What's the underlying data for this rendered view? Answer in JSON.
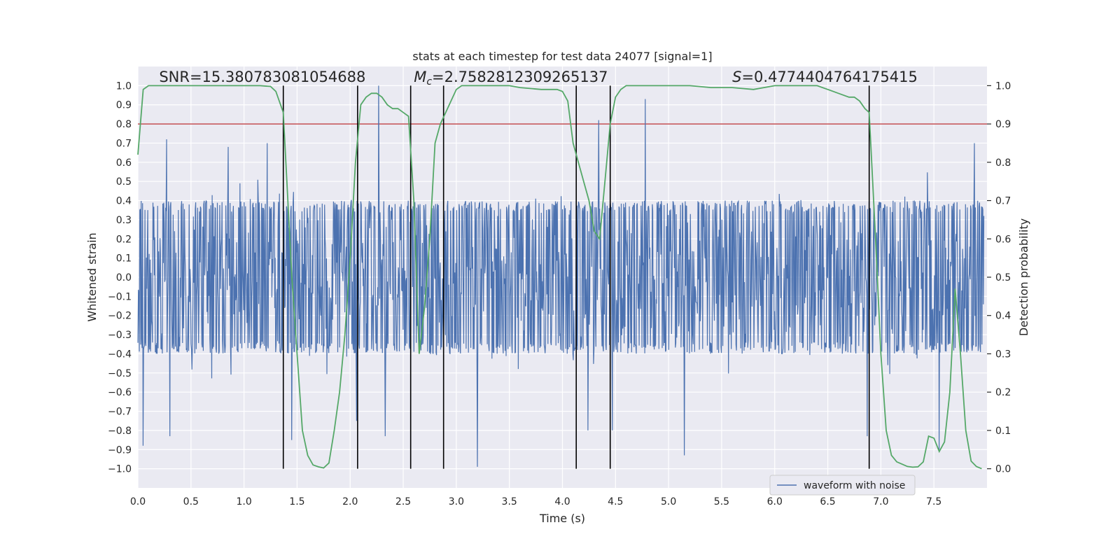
{
  "chart_data": {
    "type": "line",
    "title": "stats at each timestep for test data 24077 [signal=1]",
    "xlabel": "Time (s)",
    "ylabel": "Whitened strain",
    "ylabel_right": "Detection probability",
    "xlim": [
      0.0,
      8.0
    ],
    "ylim": [
      -1.1,
      1.1
    ],
    "ylim_right": [
      -0.05,
      1.05
    ],
    "x_ticks": [
      "0.0",
      "0.5",
      "1.0",
      "1.5",
      "2.0",
      "2.5",
      "3.0",
      "3.5",
      "4.0",
      "4.5",
      "5.0",
      "5.5",
      "6.0",
      "6.5",
      "7.0",
      "7.5"
    ],
    "x_tick_values": [
      0.0,
      0.5,
      1.0,
      1.5,
      2.0,
      2.5,
      3.0,
      3.5,
      4.0,
      4.5,
      5.0,
      5.5,
      6.0,
      6.5,
      7.0,
      7.5
    ],
    "y_ticks": [
      "1.0",
      "0.9",
      "0.8",
      "0.7",
      "0.6",
      "0.5",
      "0.4",
      "0.3",
      "0.2",
      "0.1",
      "0.0",
      "−0.1",
      "−0.2",
      "−0.3",
      "−0.4",
      "−0.5",
      "−0.6",
      "−0.7",
      "−0.8",
      "−0.9",
      "−1.0"
    ],
    "y_tick_values": [
      1.0,
      0.9,
      0.8,
      0.7,
      0.6,
      0.5,
      0.4,
      0.3,
      0.2,
      0.1,
      0.0,
      -0.1,
      -0.2,
      -0.3,
      -0.4,
      -0.5,
      -0.6,
      -0.7,
      -0.8,
      -0.9,
      -1.0
    ],
    "y2_ticks": [
      "1.0",
      "0.9",
      "0.8",
      "0.7",
      "0.6",
      "0.5",
      "0.4",
      "0.3",
      "0.2",
      "0.1",
      "0.0"
    ],
    "y2_tick_values": [
      1.0,
      0.9,
      0.8,
      0.7,
      0.6,
      0.5,
      0.4,
      0.3,
      0.2,
      0.1,
      0.0
    ],
    "grid": true,
    "legend_position": "lower-right",
    "annotations": [
      {
        "text": "SNR=15.380783081054688",
        "x": 0.2,
        "y": 1.02
      },
      {
        "text_prefix": "M",
        "text_sub": "c",
        "text_rest": "=2.7582812309265137",
        "x": 2.6,
        "y": 1.02
      },
      {
        "text_prefix": "S",
        "text_rest": "=0.4774404764175415",
        "x": 5.6,
        "y": 1.02
      }
    ],
    "threshold": {
      "y2": 0.9,
      "color": "#c44e52"
    },
    "vlines": {
      "x": [
        1.37,
        2.07,
        2.57,
        2.88,
        4.13,
        4.45,
        6.89
      ],
      "ymin": -1.0,
      "ymax": 1.0,
      "color": "#000000"
    },
    "series": [
      {
        "name": "waveform with noise",
        "color": "#4c72b0",
        "kind": "noise",
        "n_samples": 1800,
        "core_amplitude": 0.4,
        "spikes": [
          {
            "x": 0.05,
            "y": -0.88
          },
          {
            "x": 0.27,
            "y": 0.72
          },
          {
            "x": 0.3,
            "y": -0.83
          },
          {
            "x": 0.85,
            "y": 0.68
          },
          {
            "x": 1.22,
            "y": 0.7
          },
          {
            "x": 1.45,
            "y": -0.85
          },
          {
            "x": 2.27,
            "y": 1.0
          },
          {
            "x": 2.33,
            "y": -0.83
          },
          {
            "x": 2.06,
            "y": -0.75
          },
          {
            "x": 3.2,
            "y": -0.99
          },
          {
            "x": 4.24,
            "y": -0.8
          },
          {
            "x": 4.34,
            "y": 0.82
          },
          {
            "x": 4.47,
            "y": -0.8
          },
          {
            "x": 4.78,
            "y": 0.93
          },
          {
            "x": 5.15,
            "y": -0.93
          },
          {
            "x": 6.87,
            "y": -0.83
          },
          {
            "x": 7.55,
            "y": -0.9
          },
          {
            "x": 7.88,
            "y": 0.7
          }
        ]
      },
      {
        "name": "Detection probability",
        "color": "#55a868",
        "axis": "right",
        "x": [
          0.0,
          0.05,
          0.1,
          0.2,
          0.4,
          0.6,
          0.8,
          1.0,
          1.15,
          1.25,
          1.3,
          1.37,
          1.45,
          1.5,
          1.55,
          1.6,
          1.65,
          1.7,
          1.75,
          1.8,
          1.85,
          1.9,
          1.95,
          2.0,
          2.05,
          2.1,
          2.15,
          2.2,
          2.25,
          2.3,
          2.35,
          2.4,
          2.45,
          2.5,
          2.55,
          2.6,
          2.65,
          2.7,
          2.75,
          2.8,
          2.85,
          2.9,
          2.95,
          3.0,
          3.05,
          3.1,
          3.2,
          3.3,
          3.5,
          3.6,
          3.8,
          3.95,
          4.0,
          4.05,
          4.1,
          4.15,
          4.2,
          4.25,
          4.3,
          4.35,
          4.4,
          4.45,
          4.5,
          4.55,
          4.6,
          4.7,
          4.8,
          5.0,
          5.2,
          5.4,
          5.6,
          5.8,
          6.0,
          6.2,
          6.4,
          6.5,
          6.6,
          6.7,
          6.75,
          6.8,
          6.85,
          6.89,
          6.95,
          7.0,
          7.05,
          7.1,
          7.15,
          7.2,
          7.25,
          7.3,
          7.35,
          7.4,
          7.45,
          7.5,
          7.55,
          7.6,
          7.65,
          7.7,
          7.75,
          7.8,
          7.85,
          7.9,
          7.95
        ],
        "y": [
          0.82,
          0.99,
          1.0,
          1.0,
          1.0,
          1.0,
          1.0,
          1.0,
          1.0,
          0.998,
          0.985,
          0.93,
          0.5,
          0.3,
          0.1,
          0.035,
          0.01,
          0.005,
          0.002,
          0.015,
          0.1,
          0.2,
          0.35,
          0.55,
          0.8,
          0.95,
          0.97,
          0.98,
          0.98,
          0.97,
          0.95,
          0.94,
          0.94,
          0.93,
          0.92,
          0.7,
          0.3,
          0.42,
          0.6,
          0.85,
          0.9,
          0.93,
          0.96,
          0.99,
          1.0,
          1.0,
          1.0,
          1.0,
          1.0,
          0.995,
          0.99,
          0.99,
          0.985,
          0.96,
          0.85,
          0.8,
          0.75,
          0.7,
          0.62,
          0.6,
          0.75,
          0.9,
          0.97,
          0.99,
          1.0,
          1.0,
          1.0,
          1.0,
          1.0,
          0.995,
          0.995,
          0.99,
          1.0,
          1.0,
          1.0,
          0.99,
          0.98,
          0.97,
          0.97,
          0.96,
          0.94,
          0.93,
          0.6,
          0.3,
          0.1,
          0.035,
          0.018,
          0.012,
          0.006,
          0.004,
          0.005,
          0.018,
          0.085,
          0.08,
          0.045,
          0.07,
          0.2,
          0.47,
          0.3,
          0.1,
          0.02,
          0.006,
          0.0
        ]
      }
    ]
  }
}
